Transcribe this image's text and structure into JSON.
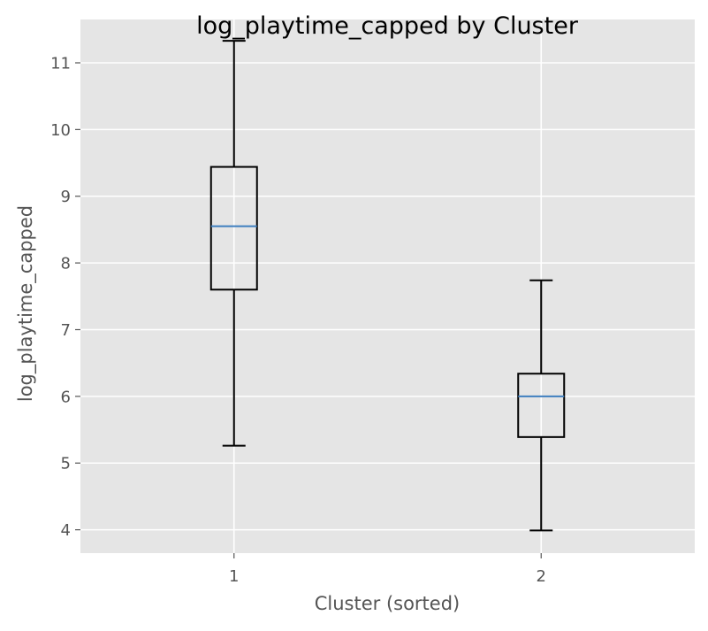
{
  "chart_data": {
    "type": "box",
    "title": "log_playtime_capped by Cluster",
    "xlabel": "Cluster (sorted)",
    "ylabel": "log_playtime_capped",
    "ylim": [
      3.65,
      11.65
    ],
    "yticks": [
      4,
      5,
      6,
      7,
      8,
      9,
      10,
      11
    ],
    "categories": [
      "1",
      "2"
    ],
    "boxes": [
      {
        "category": "1",
        "whisker_low": 5.26,
        "q1": 7.6,
        "median": 8.55,
        "q3": 9.44,
        "whisker_high": 11.33
      },
      {
        "category": "2",
        "whisker_low": 3.99,
        "q1": 5.39,
        "median": 6.0,
        "q3": 6.34,
        "whisker_high": 7.74
      }
    ],
    "grid": true,
    "colors": {
      "background": "#e5e5e5",
      "grid": "#ffffff",
      "box": "#000000",
      "median": "#3f7fbf",
      "tick_text": "#555555",
      "title_text": "#000000"
    }
  }
}
